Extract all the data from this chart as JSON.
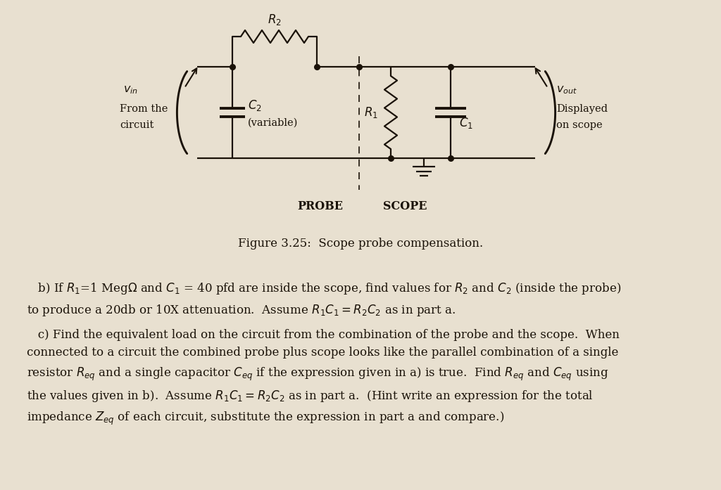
{
  "bg_color": "#e8e0d0",
  "figure_caption": "Figure 3.25:  Scope probe compensation.",
  "text_b": "   b) If $R_1$=1 Meg$\\Omega$ and $C_1$ = 40 pfd are inside the scope, find values for $R_2$ and $C_2$ (inside the probe)\nto produce a 20db or 10X attenuation.  Assume $R_1C_1 = R_2C_2$ as in part a.",
  "text_c": "   c) Find the equivalent load on the circuit from the combination of the probe and the scope.  When\nconnected to a circuit the combined probe plus scope looks like the parallel combination of a single\nresistor $R_{eq}$ and a single capacitor $C_{eq}$ if the expression given in a) is true.  Find $R_{eq}$ and $C_{eq}$ using\nthe values given in b).  Assume $R_1C_1 = R_2C_2$ as in part a.  (Hint write an expression for the total\nimpedance $Z_{eq}$ of each circuit, substitute the expression in part a and compare.)",
  "line_color": "#1a1208",
  "dot_color": "#1a1208",
  "lw": 1.6,
  "lw_thick": 2.8,
  "dot_size": 5.5
}
